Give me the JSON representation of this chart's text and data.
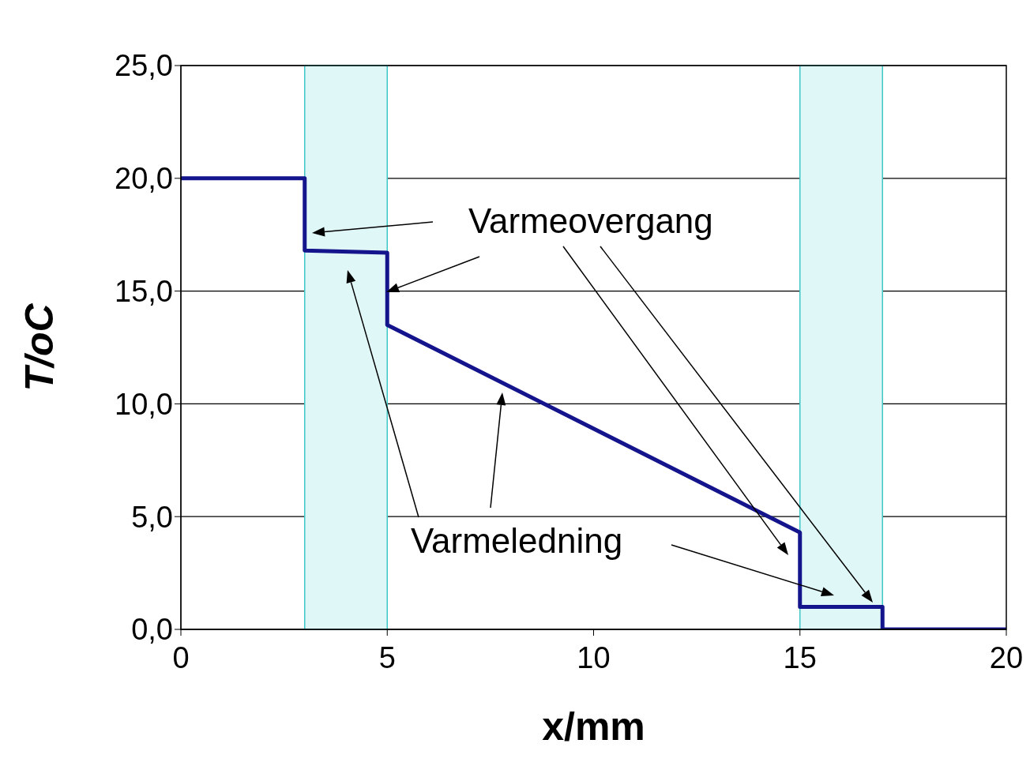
{
  "chart_data": {
    "type": "line",
    "xlabel": "x/mm",
    "ylabel": "T/oC",
    "x": [
      0,
      3,
      3,
      5,
      5,
      15,
      15,
      17,
      17,
      20
    ],
    "series": [
      {
        "color": "#14148c",
        "values": [
          20,
          20,
          16.8,
          16.7,
          13.5,
          4.3,
          1.0,
          1.0,
          0,
          0
        ]
      }
    ],
    "xlim": [
      0,
      20
    ],
    "xticks": [
      0,
      5,
      10,
      15,
      20
    ],
    "ylim": [
      0,
      25
    ],
    "yticks": [
      {
        "value": 0,
        "label": "0,0"
      },
      {
        "value": 5,
        "label": "5,0"
      },
      {
        "value": 10,
        "label": "10,0"
      },
      {
        "value": 15,
        "label": "15,0"
      },
      {
        "value": 20,
        "label": "20,0"
      },
      {
        "value": 25,
        "label": "25,0"
      }
    ],
    "grid": "y",
    "marker": "none",
    "line_style": "solid",
    "legend": false,
    "bands": [
      {
        "axis": "x",
        "from": 3,
        "to": 5,
        "color": "#e0f7f7"
      },
      {
        "axis": "x",
        "from": 15,
        "to": 17,
        "color": "#e0f7f7"
      }
    ],
    "annotations": [
      "Varmeovergang",
      "Varmeledning"
    ]
  }
}
